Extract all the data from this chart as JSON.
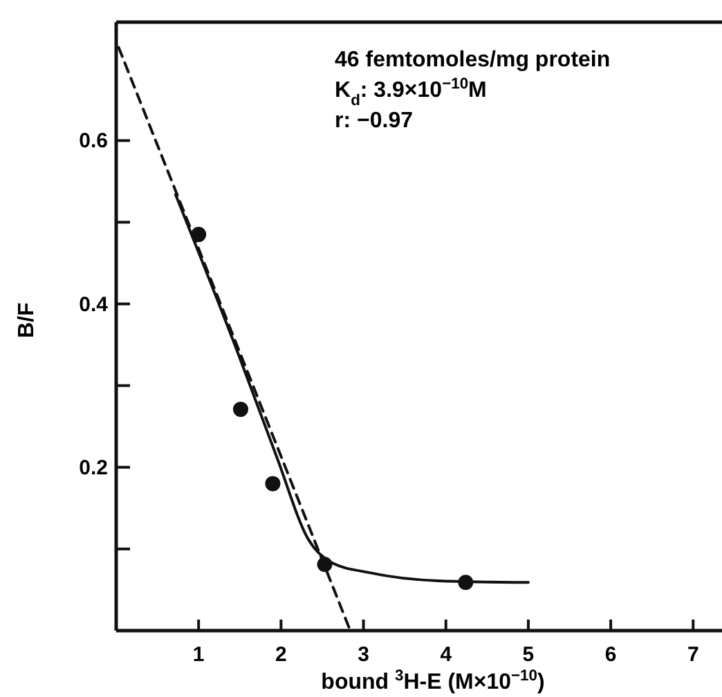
{
  "chart_data": {
    "type": "scatter",
    "xlabel": "bound $^{3}$H-E (M×10$^{−10}$)",
    "ylabel": "B/F",
    "annotations": [
      "46 femtomoles/mg protein",
      "K$_{d}$: 3.9×10$^{−10}$M",
      "r: −0.97"
    ],
    "series": [
      {
        "type": "line",
        "line_style": "dashed",
        "marker": "none",
        "color": "#111111",
        "x": [
          0.03,
          2.84
        ],
        "values": [
          0.714,
          0
        ]
      },
      {
        "type": "line",
        "line_style": "solid",
        "marker": "none",
        "color": "#111111",
        "x": [
          0.72,
          1.48,
          1.95,
          2.33,
          2.62,
          3.07,
          3.91,
          5.0
        ],
        "values": [
          0.534,
          0.339,
          0.212,
          0.112,
          0.083,
          0.071,
          0.061,
          0.059
        ]
      },
      {
        "marker": "circle",
        "color": "#111111",
        "x": [
          1.0,
          1.51,
          1.9,
          2.53,
          4.24
        ],
        "values": [
          0.485,
          0.271,
          0.18,
          0.081,
          0.059
        ]
      }
    ],
    "xlim": [
      0,
      7.35
    ],
    "ylim": [
      0,
      0.745
    ],
    "xticks": [
      1,
      2,
      3,
      4,
      5,
      6,
      7
    ],
    "yticks": [
      {
        "value": 0.1,
        "label": null
      },
      0.2,
      {
        "value": 0.3,
        "label": null
      },
      0.4,
      {
        "value": 0.5,
        "label": null
      },
      0.6
    ],
    "grid": false
  }
}
